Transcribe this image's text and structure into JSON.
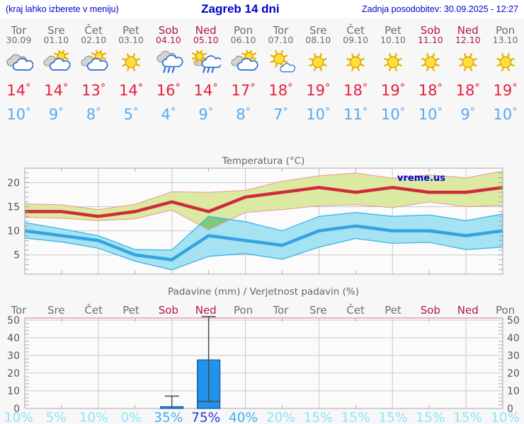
{
  "header": {
    "left_note": "(kraj lahko izberete v meniju)",
    "title": "Zagreb 14 dni",
    "updated": "Zadnja posodobitev: 30.09.2025 - 12:27"
  },
  "colors": {
    "header_text": "#0000cc",
    "day_label": "#6e6e6e",
    "weekend_label": "#b11552",
    "high_temp": "#e1233d",
    "low_temp": "#54aaf2",
    "max_line": "#d02b3c",
    "min_line": "#36a3e0",
    "max_band": "#dce9a0",
    "max_band_edge": "#e89898",
    "min_band": "#a5e3f3",
    "min_band_edge": "#3ab4e8",
    "band_overlap": "#7dc87d",
    "bar_fill": "#2293ea",
    "bar_edge": "#1258a8",
    "whisker": "#4a4a4a",
    "prob_low": "#8de6f6",
    "prob_mid": "#3cb3ef",
    "prob_high": "#2637cd",
    "grid": "#c9c9c9",
    "frame": "#a8a8a8",
    "rain_top_axis": "#e78a9a",
    "chart_text": "#555555",
    "watermark": "#0000dd"
  },
  "days": [
    {
      "name": "Tor",
      "date": "30.09",
      "weekend": false,
      "icon": "cloudy",
      "tmax": "14",
      "tmin": "10"
    },
    {
      "name": "Sre",
      "date": "01.10",
      "weekend": false,
      "icon": "partly",
      "tmax": "14",
      "tmin": "9"
    },
    {
      "name": "Čet",
      "date": "02.10",
      "weekend": false,
      "icon": "partly",
      "tmax": "13",
      "tmin": "8"
    },
    {
      "name": "Pet",
      "date": "03.10",
      "weekend": false,
      "icon": "sunny",
      "tmax": "14",
      "tmin": "5"
    },
    {
      "name": "Sob",
      "date": "04.10",
      "weekend": true,
      "icon": "rain",
      "tmax": "16",
      "tmin": "4"
    },
    {
      "name": "Ned",
      "date": "05.10",
      "weekend": true,
      "icon": "sun-rain",
      "tmax": "14",
      "tmin": "9"
    },
    {
      "name": "Pon",
      "date": "06.10",
      "weekend": false,
      "icon": "partly",
      "tmax": "17",
      "tmin": "8"
    },
    {
      "name": "Tor",
      "date": "07.10",
      "weekend": false,
      "icon": "mostly-sunny",
      "tmax": "18",
      "tmin": "7"
    },
    {
      "name": "Sre",
      "date": "08.10",
      "weekend": false,
      "icon": "sunny",
      "tmax": "19",
      "tmin": "10"
    },
    {
      "name": "Čet",
      "date": "09.10",
      "weekend": false,
      "icon": "sunny",
      "tmax": "18",
      "tmin": "11"
    },
    {
      "name": "Pet",
      "date": "10.10",
      "weekend": false,
      "icon": "sunny",
      "tmax": "19",
      "tmin": "10"
    },
    {
      "name": "Sob",
      "date": "11.10",
      "weekend": true,
      "icon": "sunny",
      "tmax": "18",
      "tmin": "10"
    },
    {
      "name": "Ned",
      "date": "12.10",
      "weekend": true,
      "icon": "sunny",
      "tmax": "18",
      "tmin": "9"
    },
    {
      "name": "Pon",
      "date": "13.10",
      "weekend": false,
      "icon": "sunny",
      "tmax": "19",
      "tmin": "10"
    }
  ],
  "chart_data": [
    {
      "type": "line",
      "title": "Temperatura (°C)",
      "watermark": "vreme.us",
      "x_categories": [
        "Tor 30.09",
        "Sre 01.10",
        "Čet 02.10",
        "Pet 03.10",
        "Sob 04.10",
        "Ned 05.10",
        "Pon 06.10",
        "Tor 07.10",
        "Sre 08.10",
        "Čet 09.10",
        "Pet 10.10",
        "Sob 11.10",
        "Ned 12.10",
        "Pon 13.10"
      ],
      "ylim": [
        1,
        23
      ],
      "yticks": [
        5,
        10,
        15,
        20
      ],
      "grid": "on",
      "legend": "none",
      "series": [
        {
          "name": "max_temp",
          "values": [
            14,
            14,
            13,
            14,
            16,
            14,
            17,
            18,
            19,
            18,
            19,
            18,
            18,
            19
          ]
        },
        {
          "name": "max_band_upper",
          "values": [
            15.6,
            15.4,
            14.4,
            15.5,
            18.1,
            18.0,
            18.4,
            20.3,
            21.4,
            22.0,
            20.9,
            21.6,
            21.0,
            22.4
          ]
        },
        {
          "name": "max_band_lower",
          "values": [
            12.8,
            12.6,
            12.1,
            12.5,
            14.3,
            10.2,
            13.8,
            14.4,
            15.2,
            15.4,
            14.8,
            16.0,
            15.0,
            15.3
          ]
        },
        {
          "name": "min_temp",
          "values": [
            10,
            9,
            8,
            5,
            4,
            9,
            8,
            7,
            10,
            11,
            10,
            10,
            9,
            10
          ]
        },
        {
          "name": "min_band_upper",
          "values": [
            11.7,
            10.4,
            9.0,
            6.1,
            6.0,
            13.0,
            11.9,
            10.0,
            13.0,
            13.8,
            13.0,
            13.3,
            12.1,
            13.5
          ]
        },
        {
          "name": "min_band_lower",
          "values": [
            8.5,
            7.7,
            6.4,
            3.7,
            1.9,
            4.7,
            5.3,
            4.1,
            6.6,
            8.4,
            7.4,
            7.6,
            6.1,
            6.6
          ]
        }
      ]
    },
    {
      "type": "bar",
      "title": "Padavine (mm) / Verjetnost padavin (%)",
      "categories": [
        "Tor",
        "Sre",
        "Čet",
        "Pet",
        "Sob",
        "Ned",
        "Pon",
        "Tor",
        "Sre",
        "Čet",
        "Pet",
        "Sob",
        "Ned",
        "Pon"
      ],
      "ylim": [
        0,
        51
      ],
      "yticks": [
        0,
        10,
        20,
        30,
        40,
        50
      ],
      "values": [
        0,
        0,
        0,
        0,
        1,
        27.5,
        0,
        0,
        0,
        0,
        0,
        0,
        0,
        0
      ],
      "bars": [
        {
          "day_index": 4,
          "value": 1,
          "whisker": [
            0,
            7
          ]
        },
        {
          "day_index": 5,
          "value": 27.5,
          "whisker": [
            4,
            52
          ]
        }
      ],
      "probabilities": [
        10,
        5,
        10,
        0,
        35,
        75,
        40,
        20,
        15,
        15,
        15,
        15,
        15,
        10
      ],
      "probability_unit": "%"
    }
  ]
}
